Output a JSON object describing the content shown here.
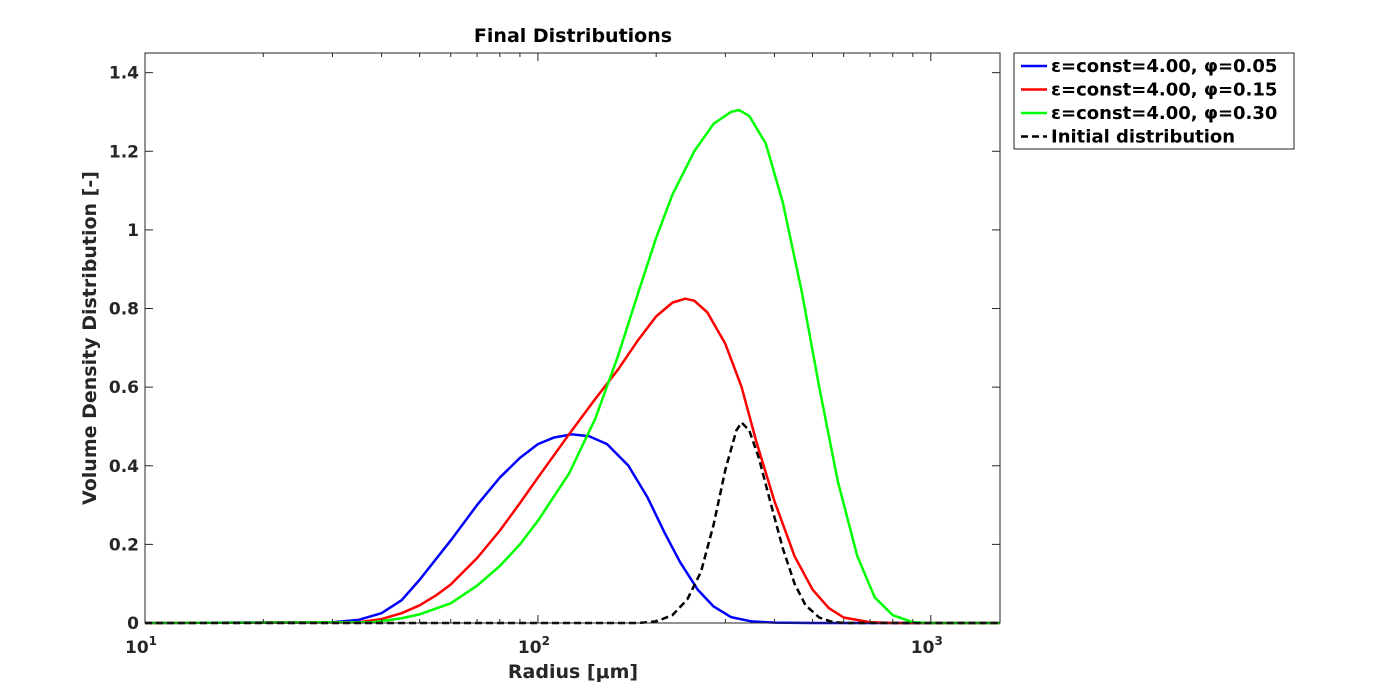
{
  "chart_data": {
    "type": "line",
    "title": "Final Distributions",
    "xlabel": "Radius [μm]",
    "ylabel": "Volume Density Distribution [-]",
    "xscale": "log",
    "xlim": [
      10,
      1500
    ],
    "ylim": [
      0,
      1.45
    ],
    "xticks": [
      {
        "value": 10,
        "base": "10",
        "exp": "1"
      },
      {
        "value": 100,
        "base": "10",
        "exp": "2"
      },
      {
        "value": 1000,
        "base": "10",
        "exp": "3"
      }
    ],
    "yticks": [
      {
        "value": 0,
        "label": "0"
      },
      {
        "value": 0.2,
        "label": "0.2"
      },
      {
        "value": 0.4,
        "label": "0.4"
      },
      {
        "value": 0.6,
        "label": "0.6"
      },
      {
        "value": 0.8,
        "label": "0.8"
      },
      {
        "value": 1.0,
        "label": "1"
      },
      {
        "value": 1.2,
        "label": "1.2"
      },
      {
        "value": 1.4,
        "label": "1.4"
      }
    ],
    "grid": false,
    "legend_position": "outside top-right",
    "series": [
      {
        "name": "ε=const=4.00, φ=0.05",
        "color": "#0000ff",
        "dash": "solid",
        "points": [
          [
            10,
            0
          ],
          [
            30,
            0.002
          ],
          [
            35,
            0.008
          ],
          [
            40,
            0.025
          ],
          [
            45,
            0.058
          ],
          [
            50,
            0.11
          ],
          [
            60,
            0.21
          ],
          [
            70,
            0.3
          ],
          [
            80,
            0.37
          ],
          [
            90,
            0.42
          ],
          [
            100,
            0.455
          ],
          [
            110,
            0.472
          ],
          [
            122,
            0.48
          ],
          [
            135,
            0.475
          ],
          [
            150,
            0.455
          ],
          [
            170,
            0.4
          ],
          [
            190,
            0.32
          ],
          [
            210,
            0.23
          ],
          [
            230,
            0.155
          ],
          [
            255,
            0.085
          ],
          [
            280,
            0.042
          ],
          [
            310,
            0.015
          ],
          [
            350,
            0.004
          ],
          [
            400,
            0.001
          ],
          [
            500,
            0
          ],
          [
            1500,
            0
          ]
        ]
      },
      {
        "name": "ε=const=4.00, φ=0.15",
        "color": "#ff0000",
        "dash": "solid",
        "points": [
          [
            10,
            0
          ],
          [
            35,
            0.002
          ],
          [
            40,
            0.01
          ],
          [
            45,
            0.025
          ],
          [
            50,
            0.045
          ],
          [
            55,
            0.07
          ],
          [
            60,
            0.098
          ],
          [
            70,
            0.165
          ],
          [
            80,
            0.235
          ],
          [
            90,
            0.305
          ],
          [
            100,
            0.37
          ],
          [
            120,
            0.48
          ],
          [
            140,
            0.57
          ],
          [
            160,
            0.645
          ],
          [
            180,
            0.72
          ],
          [
            200,
            0.78
          ],
          [
            220,
            0.815
          ],
          [
            237,
            0.825
          ],
          [
            250,
            0.82
          ],
          [
            270,
            0.79
          ],
          [
            300,
            0.71
          ],
          [
            330,
            0.6
          ],
          [
            360,
            0.46
          ],
          [
            400,
            0.31
          ],
          [
            450,
            0.17
          ],
          [
            500,
            0.085
          ],
          [
            550,
            0.038
          ],
          [
            600,
            0.014
          ],
          [
            700,
            0.002
          ],
          [
            800,
            0
          ],
          [
            1500,
            0
          ]
        ]
      },
      {
        "name": "ε=const=4.00, φ=0.30",
        "color": "#00ff00",
        "dash": "solid",
        "points": [
          [
            10,
            0
          ],
          [
            38,
            0.002
          ],
          [
            45,
            0.012
          ],
          [
            50,
            0.022
          ],
          [
            60,
            0.05
          ],
          [
            70,
            0.095
          ],
          [
            80,
            0.145
          ],
          [
            90,
            0.2
          ],
          [
            100,
            0.26
          ],
          [
            120,
            0.38
          ],
          [
            140,
            0.52
          ],
          [
            160,
            0.68
          ],
          [
            180,
            0.84
          ],
          [
            200,
            0.98
          ],
          [
            220,
            1.09
          ],
          [
            250,
            1.2
          ],
          [
            280,
            1.27
          ],
          [
            310,
            1.3
          ],
          [
            325,
            1.305
          ],
          [
            345,
            1.29
          ],
          [
            380,
            1.22
          ],
          [
            420,
            1.07
          ],
          [
            470,
            0.84
          ],
          [
            520,
            0.6
          ],
          [
            580,
            0.36
          ],
          [
            650,
            0.17
          ],
          [
            720,
            0.065
          ],
          [
            800,
            0.02
          ],
          [
            900,
            0.002
          ],
          [
            1000,
            0
          ],
          [
            1500,
            0
          ]
        ]
      },
      {
        "name": "Initial distribution",
        "color": "#000000",
        "dash": "dashed",
        "points": [
          [
            10,
            0
          ],
          [
            180,
            0
          ],
          [
            200,
            0.004
          ],
          [
            220,
            0.02
          ],
          [
            240,
            0.06
          ],
          [
            260,
            0.13
          ],
          [
            280,
            0.25
          ],
          [
            300,
            0.39
          ],
          [
            320,
            0.49
          ],
          [
            330,
            0.51
          ],
          [
            345,
            0.49
          ],
          [
            365,
            0.42
          ],
          [
            390,
            0.31
          ],
          [
            420,
            0.19
          ],
          [
            450,
            0.1
          ],
          [
            480,
            0.045
          ],
          [
            520,
            0.014
          ],
          [
            560,
            0.003
          ],
          [
            600,
            0
          ],
          [
            1500,
            0
          ]
        ]
      }
    ]
  }
}
